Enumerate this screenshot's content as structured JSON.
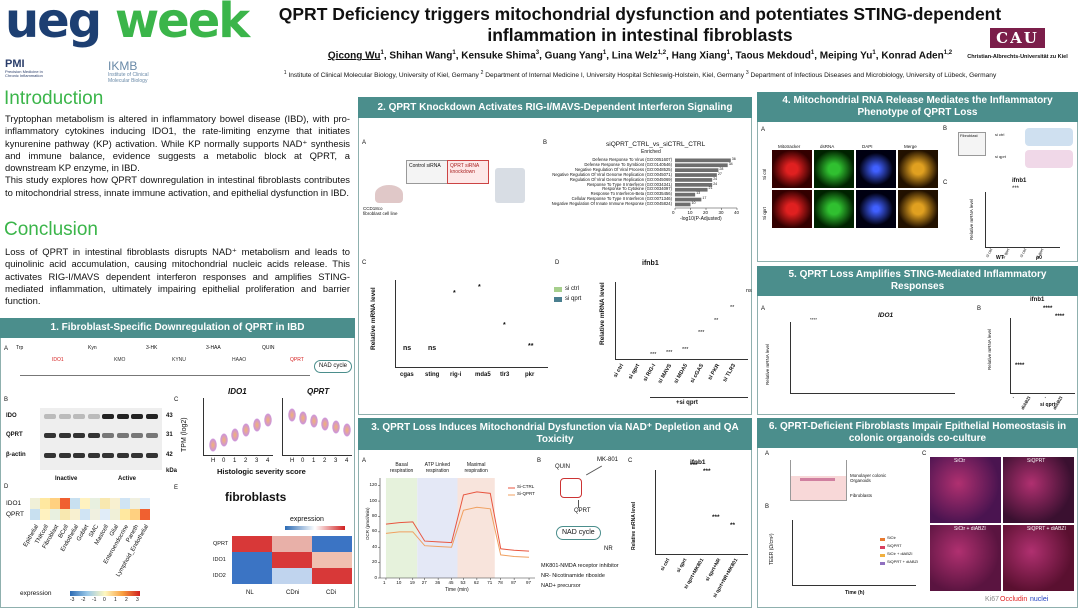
{
  "header": {
    "logo": {
      "ueg": "ueg",
      "week": "week"
    },
    "title": "QPRT Deficiency triggers mitochondrial dysfunction and potentiates STING-dependent inflammation in intestinal fibroblasts",
    "authors": [
      {
        "name": "Qicong Wu",
        "sup": "1"
      },
      {
        "name": "Shihan Wang",
        "sup": "1"
      },
      {
        "name": "Kensuke Shima",
        "sup": "3"
      },
      {
        "name": "Guang Yang",
        "sup": "1"
      },
      {
        "name": "Lina Welz",
        "sup": "1,2"
      },
      {
        "name": "Hang Xiang",
        "sup": "1"
      },
      {
        "name": "Taous Mekdoud",
        "sup": "1"
      },
      {
        "name": "Meiping Yu",
        "sup": "1"
      },
      {
        "name": "Konrad Aden",
        "sup": "1,2"
      }
    ],
    "author_separator": ",",
    "affiliations": [
      {
        "sup": "1",
        "text": "Institute of Clinical Molecular Biology, University of Kiel, Germany"
      },
      {
        "sup": "2",
        "text": "Department of Internal Medicine I, University Hospital Schleswig-Holstein, Kiel, Germany"
      },
      {
        "sup": "3",
        "text": "Department of Infectious Diseases and Microbiology, University of Lübeck, Germany"
      }
    ],
    "partners": {
      "pmi": "PMI",
      "pmi_sub": "Precision Medicine in Chronic Inflammation",
      "ikmb": "IKMB",
      "ikmb_sub": "Institute of Clinical Molecular Biology",
      "cau": "CAU",
      "cau_name": "Christian-Albrechts-Universität zu Kiel"
    }
  },
  "introduction": {
    "heading": "Introduction",
    "paragraphs": [
      "Tryptophan metabolism is altered in inflammatory bowel disease (IBD), with pro-inflammatory cytokines inducing IDO1, the rate-limiting enzyme that initiates kynurenine pathway (KP) activation. While KP normally supports NAD⁺ synthesis and immune balance, evidence suggests a metabolic block at QPRT, a downstream KP enzyme, in IBD.",
      "This study explores how QPRT downregulation in intestinal fibroblasts contributes to mitochondrial stress, innate immune activation, and epithelial dysfunction in IBD."
    ]
  },
  "conclusion": {
    "heading": "Conclusion",
    "paragraphs": [
      "Loss of QPRT in intestinal fibroblasts disrupts NAD⁺ metabolism and leads to quinolinic acid accumulation, causing mitochondrial nucleic acids release. This activates RIG-I/MAVS dependent interferon responses and amplifies STING-mediated inflammation, ultimately impairing epithelial proliferation and barrier function."
    ]
  },
  "sections": [
    {
      "title": "1. Fibroblast-Specific Downregulation of QPRT in IBD",
      "panels": {
        "A": {
          "letter": "A",
          "pathway": [
            "Trp",
            "IDO1",
            "Kyn",
            "KMO",
            "3-HK",
            "KYNU",
            "3-HAA",
            "HAAO",
            "QUIN",
            "QPRT",
            "NAD cycle"
          ]
        },
        "B": {
          "letter": "B",
          "bands": [
            "IDO",
            "QPRT",
            "β-actin"
          ],
          "sizes": [
            "43",
            "31",
            "42"
          ],
          "unit": "kDa",
          "groups": [
            "Inactive",
            "Active"
          ]
        },
        "C": {
          "letter": "C",
          "plots": [
            "IDO1",
            "QPRT"
          ],
          "ylabel": "TPM (log2)",
          "xticks": [
            "H",
            "0",
            "1",
            "2",
            "3",
            "4"
          ],
          "xlabel": "Histologic severity score"
        },
        "D": {
          "letter": "D",
          "rows": [
            "IDO1",
            "QPRT"
          ],
          "cols": [
            "Epithelial",
            "TNKcell",
            "Fibroblast",
            "BCell",
            "Endothelial",
            "Goblet",
            "SMC",
            "Mastcell",
            "Glial",
            "Enteroendocrine",
            "Paneth",
            "Lymphoid_Endothelial"
          ],
          "legend": "expression",
          "scale": [
            "-3",
            "-2",
            "-1",
            "0",
            "1",
            "2",
            "3"
          ]
        },
        "E": {
          "letter": "E",
          "title": "fibroblasts",
          "legend": "expression",
          "rows": [
            "QPRT",
            "IDO1",
            "IDO2"
          ],
          "cols": [
            "NL",
            "CDni",
            "CDi"
          ]
        }
      }
    },
    {
      "title": "2. QPRT Knockdown Activates RIG-I/MAVS-Dependent Interferon Signaling",
      "panels": {
        "A": {
          "letter": "A",
          "labels": [
            "Control siRNA",
            "QPRT siRNA knockdown",
            "CCD18co fibroblast cell line"
          ]
        },
        "B": {
          "letter": "B",
          "title": "siQPRT_CTRL_vs_siCTRL_CTRL",
          "subtitle": "Enriched",
          "terms": [
            "Defense Response To Virus (GO:0051607)",
            "Defense Response To Symbiont (GO:0140546)",
            "Negative Regulation Of Viral Process (GO:0048525)",
            "Negative Regulation Of Viral Genome Replication (GO:0045071)",
            "Regulation Of Viral Genome Replication (GO:0045069)",
            "Response To Type II Interferon (GO:0034341)",
            "Response To Cytokine (GO:0034097)",
            "Response To Interferon-Beta (GO:0035456)",
            "Cellular Response To Type II Interferon (GO:0071346)",
            "Negative Regulation Of Innate Immune Response (GO:0045824)"
          ],
          "values": [
            36,
            34,
            28,
            27,
            24,
            24,
            21,
            13,
            17,
            10
          ],
          "color": "#6e6e6e",
          "xlim": [
            0,
            40
          ],
          "xticks": [
            0,
            10,
            20,
            30,
            40
          ],
          "xlabel": "-log10(P-Adjusted)"
        },
        "C": {
          "letter": "C",
          "ylabel": "Relative mRNA level",
          "genes": [
            "cgas",
            "sting",
            "rig-i",
            "mda5",
            "tlr3",
            "pkr"
          ],
          "sig": [
            "ns",
            "ns",
            "*",
            "*",
            "*",
            "**"
          ]
        },
        "D": {
          "letter": "D",
          "title": "ifnb1",
          "ylabel": "Relative mRNA level",
          "legend": [
            "si ctrl",
            "si qprt"
          ],
          "conds": [
            "si ctrl",
            "si qprt",
            "si RIG-I",
            "si MAVS",
            "si MDA5",
            "si cGAS",
            "si PKR",
            "si TLR3"
          ],
          "group": "+si qprt",
          "sig": [
            "***",
            "***",
            "***",
            "***",
            "**",
            "**",
            "ns"
          ]
        }
      }
    },
    {
      "title": "3. QPRT Loss Induces Mitochondrial Dysfunction via NAD⁺ Depletion and QA Toxicity",
      "panels": {
        "A": {
          "letter": "A",
          "phases": [
            "Basal respiration",
            "ATP Linked respiration",
            "Maximal respiration"
          ],
          "ylabel": "OCR (pmol/min)",
          "xlabel": "Time (min)",
          "x": [
            1,
            10,
            19,
            27,
            36,
            45,
            53,
            62,
            71,
            78,
            87,
            97
          ],
          "series": [
            {
              "name": "Si-CTRL",
              "color": "#e8553f",
              "values": [
                70,
                72,
                73,
                48,
                47,
                46,
                108,
                112,
                110,
                38,
                36,
                35
              ]
            },
            {
              "name": "Si-QPRT",
              "color": "#f0a060",
              "values": [
                58,
                60,
                60,
                42,
                41,
                40,
                88,
                92,
                90,
                30,
                28,
                27
              ]
            }
          ],
          "xlim": [
            -3,
            101
          ],
          "ylim": [
            0,
            130
          ],
          "yticks": [
            0,
            20,
            40,
            60,
            80,
            100,
            120
          ],
          "xticks": [
            1,
            10,
            19,
            27,
            36,
            45,
            53,
            62,
            71,
            78,
            87,
            97
          ]
        },
        "B": {
          "letter": "B",
          "labels": [
            "QUIN",
            "MK-801",
            "QPRT",
            "NAD cycle",
            "NR"
          ],
          "notes": [
            "MK801-NMDA receptor inhibitor",
            "NR- Nicotinamide riboside",
            "NAD+ precursor"
          ]
        },
        "C": {
          "letter": "C",
          "title": "ifnb1",
          "ylabel": "Relative mRNA level",
          "conds": [
            "si ctrl",
            "si qprt",
            "si qprt+MK801",
            "si qprt+NR",
            "si qprt+NR+MK801"
          ],
          "sig": [
            "***",
            "***",
            "***",
            "**"
          ]
        }
      }
    },
    {
      "title": "4. Mitochondrial RNA Release Mediates the Inflammatory Phenotype of QPRT Loss",
      "panels": {
        "A": {
          "letter": "A",
          "cols": [
            "Mitotracker",
            "dsRNA",
            "DAPI",
            "Merge"
          ],
          "rows": [
            "Si ctrl",
            "Si qprt"
          ]
        },
        "B": {
          "letter": "B",
          "labels": [
            "Fibroblast",
            "si ctrl",
            "si qprt"
          ]
        },
        "C": {
          "letter": "C",
          "title": "ifnb1",
          "ylabel": "Relative mRNA level",
          "conds": [
            "si ctrl",
            "si qprt",
            "si ctrl",
            "si qprt"
          ],
          "groups": [
            "WT",
            "ρ0"
          ],
          "sig": "***"
        }
      }
    },
    {
      "title": "5. QPRT Loss Amplifies STING-Mediated Inflammatory Responses",
      "panels": {
        "A": {
          "letter": "A",
          "title": "IDO1",
          "ylabel": "Relative mRNA level",
          "sig": "****"
        },
        "B": {
          "letter": "B",
          "title": "ifnb1",
          "ylabel": "Relative mRNA level",
          "conds": [
            "-",
            "diABZI",
            "-",
            "diABZI"
          ],
          "group": "si qprt",
          "sig": [
            "****",
            "****",
            "****"
          ]
        }
      }
    },
    {
      "title": "6. QPRT-Deficient Fibroblasts Impair Epithelial Homeostasis in colonic organoids co-culture",
      "panels": {
        "A": {
          "letter": "A",
          "labels": [
            "Monolayer colonic Organoids",
            "Fibroblasts"
          ]
        },
        "B": {
          "letter": "B",
          "ylabel": "TEER (Ω/cm²)",
          "xlabel": "Time (h)",
          "legend": [
            "SiCtr",
            "SiQPRT",
            "SiCtr + diABZI",
            "SiQPRT + diABZI"
          ]
        },
        "C": {
          "letter": "C",
          "panels": [
            "SiCtr",
            "SiQPRT",
            "SiCtr + diABZI",
            "SiQPRT + diABZI"
          ],
          "stain": [
            "Ki67",
            "Occludin",
            "nuclei"
          ]
        }
      }
    }
  ]
}
